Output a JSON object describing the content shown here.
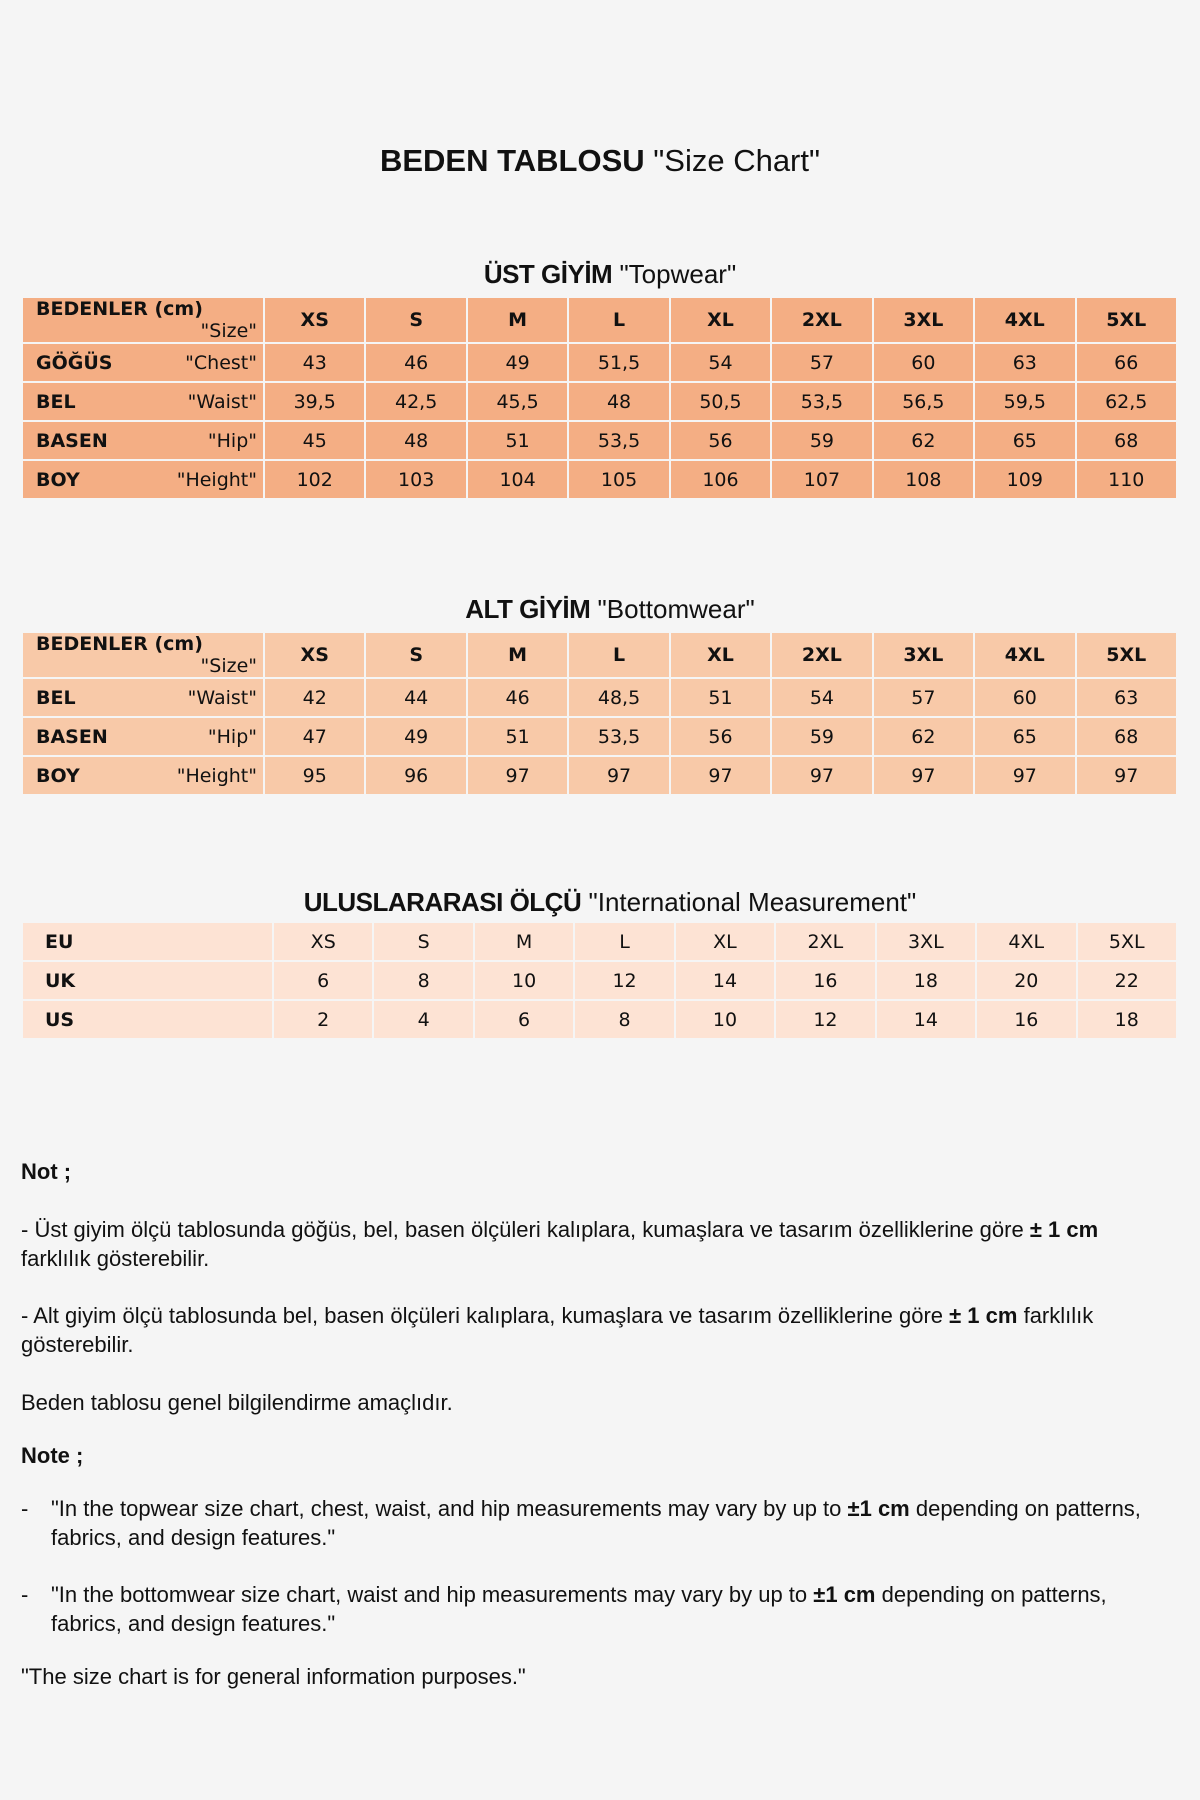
{
  "title": {
    "bold": "BEDEN TABLOSU",
    "normal": "\"Size Chart\""
  },
  "colors": {
    "background": "#f5f5f5",
    "topwear": "#f4ae84",
    "bottomwear": "#f8c9a8",
    "international": "#fde3d4"
  },
  "topwear": {
    "title_bold": "ÜST GİYİM",
    "title_normal": "\"Topwear\"",
    "header": {
      "tr": "BEDENLER (cm)",
      "en": "\"Size\"",
      "sizes": [
        "XS",
        "S",
        "M",
        "L",
        "XL",
        "2XL",
        "3XL",
        "4XL",
        "5XL"
      ]
    },
    "rows": [
      {
        "tr": "GÖĞÜS",
        "en": "\"Chest\"",
        "values": [
          "43",
          "46",
          "49",
          "51,5",
          "54",
          "57",
          "60",
          "63",
          "66"
        ]
      },
      {
        "tr": "BEL",
        "en": "\"Waist\"",
        "values": [
          "39,5",
          "42,5",
          "45,5",
          "48",
          "50,5",
          "53,5",
          "56,5",
          "59,5",
          "62,5"
        ]
      },
      {
        "tr": "BASEN",
        "en": "\"Hip\"",
        "values": [
          "45",
          "48",
          "51",
          "53,5",
          "56",
          "59",
          "62",
          "65",
          "68"
        ]
      },
      {
        "tr": "BOY",
        "en": "\"Height\"",
        "values": [
          "102",
          "103",
          "104",
          "105",
          "106",
          "107",
          "108",
          "109",
          "110"
        ]
      }
    ]
  },
  "bottomwear": {
    "title_bold": "ALT GİYİM",
    "title_normal": "\"Bottomwear\"",
    "header": {
      "tr": "BEDENLER (cm)",
      "en": "\"Size\"",
      "sizes": [
        "XS",
        "S",
        "M",
        "L",
        "XL",
        "2XL",
        "3XL",
        "4XL",
        "5XL"
      ]
    },
    "rows": [
      {
        "tr": "BEL",
        "en": "\"Waist\"",
        "values": [
          "42",
          "44",
          "46",
          "48,5",
          "51",
          "54",
          "57",
          "60",
          "63"
        ]
      },
      {
        "tr": "BASEN",
        "en": "\"Hip\"",
        "values": [
          "47",
          "49",
          "51",
          "53,5",
          "56",
          "59",
          "62",
          "65",
          "68"
        ]
      },
      {
        "tr": "BOY",
        "en": "\"Height\"",
        "values": [
          "95",
          "96",
          "97",
          "97",
          "97",
          "97",
          "97",
          "97",
          "97"
        ]
      }
    ]
  },
  "international": {
    "title_bold": "ULUSLARARASI  ÖLÇÜ",
    "title_normal": "\"International Measurement\"",
    "rows": [
      {
        "label": "EU",
        "values": [
          "XS",
          "S",
          "M",
          "L",
          "XL",
          "2XL",
          "3XL",
          "4XL",
          "5XL"
        ]
      },
      {
        "label": "UK",
        "values": [
          "6",
          "8",
          "10",
          "12",
          "14",
          "16",
          "18",
          "20",
          "22"
        ]
      },
      {
        "label": "US",
        "values": [
          "2",
          "4",
          "6",
          "8",
          "10",
          "12",
          "14",
          "16",
          "18"
        ]
      }
    ]
  },
  "notes": {
    "not_heading": "Not ;",
    "tr1_a": "- Üst giyim ölçü tablosunda göğüs, bel, basen ölçüleri kalıplara, kumaşlara ve tasarım özelliklerine göre ",
    "tr1_b": "± 1 cm",
    "tr1_c": " farklılık gösterebilir.",
    "tr2_a": "- Alt giyim ölçü tablosunda bel, basen ölçüleri kalıplara, kumaşlara ve tasarım özelliklerine göre ",
    "tr2_b": "± 1 cm",
    "tr2_c": " farklılık gösterebilir.",
    "tr3": "Beden tablosu genel bilgilendirme amaçlıdır.",
    "note_heading": "Note ;",
    "dash": "-",
    "en1_a": "\"In the topwear size chart, chest, waist, and hip measurements may vary by up to ",
    "en1_b": "±1 cm",
    "en1_c": " depending on patterns, fabrics, and design features.\"",
    "en2_a": "\"In the bottomwear size chart, waist and hip measurements may vary by up to ",
    "en2_b": "±1 cm",
    "en2_c": " depending on patterns, fabrics, and design features.\"",
    "en3": "\"The size chart is for general information purposes.\""
  }
}
